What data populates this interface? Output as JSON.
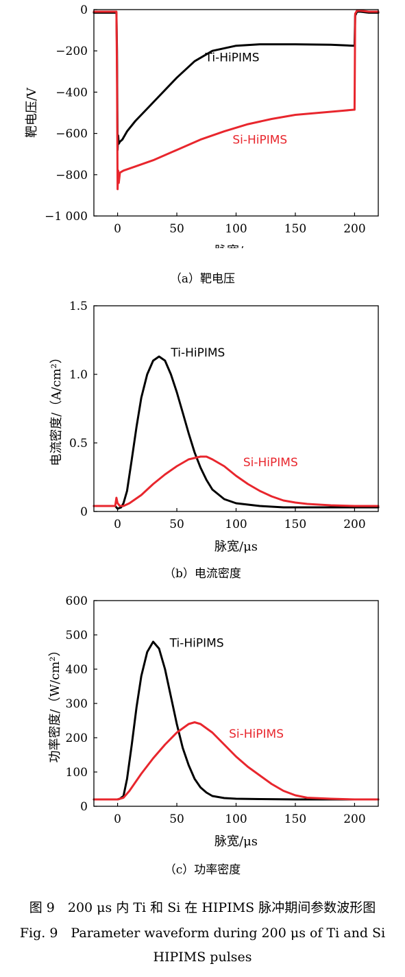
{
  "chart_data": [
    {
      "type": "line",
      "subcaption": "（a）靶电压",
      "xlabel": "脉宽/μs",
      "ylabel": "靶电压/V",
      "xlim": [
        -20,
        220
      ],
      "ylim": [
        -1000,
        0
      ],
      "xticks": [
        0,
        50,
        100,
        150,
        200
      ],
      "xtick_labels": [
        "0",
        "50",
        "100",
        "150",
        "200"
      ],
      "yticks": [
        0,
        -200,
        -400,
        -600,
        -800,
        -1000
      ],
      "ytick_labels": [
        "0",
        "−200",
        "−400",
        "−600",
        "−800",
        "−1 000"
      ],
      "grid": false,
      "series": [
        {
          "name": "Ti-HiPIMS",
          "color": "#000000",
          "x": [
            -20,
            -1,
            -0.5,
            0,
            0.5,
            1,
            2,
            4,
            8,
            15,
            25,
            35,
            50,
            65,
            80,
            100,
            120,
            150,
            180,
            199.5,
            200,
            200.5,
            202,
            205,
            212,
            220
          ],
          "y": [
            -15,
            -15,
            -200,
            -680,
            -610,
            -650,
            -640,
            -630,
            -590,
            -540,
            -480,
            -420,
            -330,
            -250,
            -200,
            -175,
            -168,
            -168,
            -170,
            -175,
            -175,
            -30,
            -10,
            -10,
            -15,
            -15
          ]
        },
        {
          "name": "Si-HiPIMS",
          "color": "#e8262d",
          "x": [
            -20,
            -1,
            -0.5,
            0,
            0.5,
            1,
            2,
            5,
            15,
            30,
            50,
            70,
            90,
            110,
            130,
            150,
            170,
            190,
            199.5,
            200,
            200.5,
            202,
            205,
            212,
            220
          ],
          "y": [
            -10,
            -10,
            -300,
            -870,
            -780,
            -840,
            -790,
            -780,
            -760,
            -730,
            -680,
            -630,
            -590,
            -555,
            -530,
            -510,
            -500,
            -490,
            -485,
            -485,
            -20,
            -5,
            -5,
            -10,
            -10
          ]
        }
      ],
      "annotations": [
        {
          "text": "Ti-HiPIMS",
          "color": "#000000",
          "x": 74,
          "y": -250
        },
        {
          "text": "Si-HiPIMS",
          "color": "#e8262d",
          "x": 97,
          "y": -650
        }
      ]
    },
    {
      "type": "line",
      "subcaption": "（b）电流密度",
      "xlabel": "脉宽/μs",
      "ylabel": "电流密度/（A/cm²）",
      "xlim": [
        -20,
        220
      ],
      "ylim": [
        0,
        1.5
      ],
      "xticks": [
        0,
        50,
        100,
        150,
        200
      ],
      "xtick_labels": [
        "0",
        "50",
        "100",
        "150",
        "200"
      ],
      "yticks": [
        0,
        0.5,
        1.0,
        1.5
      ],
      "ytick_labels": [
        "0",
        "0.5",
        "1.0",
        "1.5"
      ],
      "grid": false,
      "series": [
        {
          "name": "Ti-HiPIMS",
          "color": "#000000",
          "x": [
            -20,
            -2,
            0,
            3,
            5,
            8,
            12,
            16,
            20,
            25,
            30,
            35,
            40,
            45,
            50,
            55,
            60,
            65,
            70,
            75,
            80,
            90,
            100,
            110,
            120,
            140,
            160,
            180,
            200,
            220
          ],
          "y": [
            0.04,
            0.04,
            0.02,
            0.03,
            0.06,
            0.15,
            0.38,
            0.62,
            0.83,
            1.0,
            1.1,
            1.13,
            1.1,
            1.0,
            0.87,
            0.72,
            0.57,
            0.43,
            0.32,
            0.23,
            0.16,
            0.09,
            0.06,
            0.05,
            0.04,
            0.03,
            0.03,
            0.03,
            0.03,
            0.03
          ]
        },
        {
          "name": "Si-HiPIMS",
          "color": "#e8262d",
          "x": [
            -20,
            -2,
            -1,
            0,
            2,
            5,
            10,
            20,
            30,
            40,
            50,
            60,
            70,
            75,
            80,
            90,
            100,
            110,
            120,
            130,
            140,
            150,
            160,
            170,
            180,
            200,
            220
          ],
          "y": [
            0.04,
            0.04,
            0.1,
            0.06,
            0.04,
            0.04,
            0.06,
            0.12,
            0.2,
            0.27,
            0.33,
            0.38,
            0.4,
            0.4,
            0.38,
            0.33,
            0.26,
            0.2,
            0.15,
            0.11,
            0.08,
            0.065,
            0.055,
            0.05,
            0.045,
            0.04,
            0.04
          ]
        }
      ],
      "annotations": [
        {
          "text": "Ti-HiPIMS",
          "color": "#000000",
          "x": 45,
          "y": 1.13
        },
        {
          "text": "Si-HiPIMS",
          "color": "#e8262d",
          "x": 106,
          "y": 0.33
        }
      ]
    },
    {
      "type": "line",
      "subcaption": "（c）功率密度",
      "xlabel": "脉宽/μs",
      "ylabel": "功率密度/（W/cm²）",
      "xlim": [
        -20,
        220
      ],
      "ylim": [
        0,
        600
      ],
      "xticks": [
        0,
        50,
        100,
        150,
        200
      ],
      "xtick_labels": [
        "0",
        "50",
        "100",
        "150",
        "200"
      ],
      "yticks": [
        0,
        100,
        200,
        300,
        400,
        500,
        600
      ],
      "ytick_labels": [
        "0",
        "100",
        "200",
        "300",
        "400",
        "500",
        "600"
      ],
      "grid": false,
      "series": [
        {
          "name": "Ti-HiPIMS",
          "color": "#000000",
          "x": [
            -20,
            0,
            2,
            5,
            8,
            12,
            16,
            20,
            25,
            30,
            35,
            40,
            45,
            50,
            55,
            60,
            65,
            70,
            75,
            80,
            90,
            100,
            120,
            150,
            200,
            220
          ],
          "y": [
            20,
            20,
            22,
            30,
            80,
            180,
            290,
            380,
            450,
            480,
            460,
            400,
            320,
            240,
            170,
            120,
            80,
            55,
            40,
            30,
            24,
            22,
            21,
            20,
            20,
            20
          ]
        },
        {
          "name": "Si-HiPIMS",
          "color": "#e8262d",
          "x": [
            -20,
            0,
            5,
            10,
            20,
            30,
            40,
            50,
            60,
            65,
            70,
            80,
            90,
            100,
            110,
            120,
            130,
            140,
            150,
            160,
            180,
            200,
            220
          ],
          "y": [
            20,
            20,
            25,
            45,
            95,
            140,
            180,
            215,
            240,
            245,
            240,
            215,
            180,
            145,
            115,
            90,
            65,
            45,
            32,
            25,
            22,
            20,
            20
          ]
        }
      ],
      "annotations": [
        {
          "text": "Ti-HiPIMS",
          "color": "#000000",
          "x": 44,
          "y": 465
        },
        {
          "text": "Si-HiPIMS",
          "color": "#e8262d",
          "x": 94,
          "y": 200
        }
      ]
    }
  ],
  "figure_caption": {
    "line1": "图 9　200 μs 内 Ti 和 Si 在 HIPIMS 脉冲期间参数波形图",
    "line2": "Fig. 9　Parameter waveform during 200 μs of Ti and Si",
    "line3": "HIPIMS pulses"
  }
}
